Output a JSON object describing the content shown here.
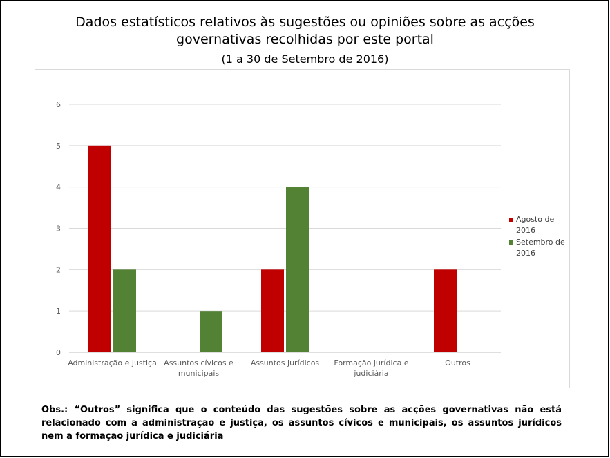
{
  "header": {
    "title": "Dados estatísticos relativos às sugestões ou opiniões sobre as acções governativas recolhidas por este portal",
    "subtitle": "(1 a 30 de Setembro de 2016)"
  },
  "chart_data": {
    "type": "bar",
    "categories": [
      "Administração e justiça",
      "Assuntos cívicos e municipais",
      "Assuntos jurídicos",
      "Formação jurídica e judiciária",
      "Outros"
    ],
    "series": [
      {
        "name": "Agosto de 2016",
        "values": [
          5,
          0,
          2,
          0,
          2
        ],
        "color": "#c00000"
      },
      {
        "name": "Setembro de 2016",
        "values": [
          2,
          1,
          4,
          0,
          0
        ],
        "color": "#548235"
      }
    ],
    "y_ticks": [
      "0",
      "1",
      "2",
      "3",
      "4",
      "5",
      "6"
    ],
    "ylim": [
      0,
      6
    ],
    "grid": true,
    "legend_position": "right"
  },
  "note": {
    "text": "Obs.: “Outros” significa que o conteúdo das sugestões sobre as acções governativas não está relacionado com a administração e justiça, os assuntos cívicos e municipais, os assuntos jurídicos nem a formação jurídica e judiciária"
  }
}
